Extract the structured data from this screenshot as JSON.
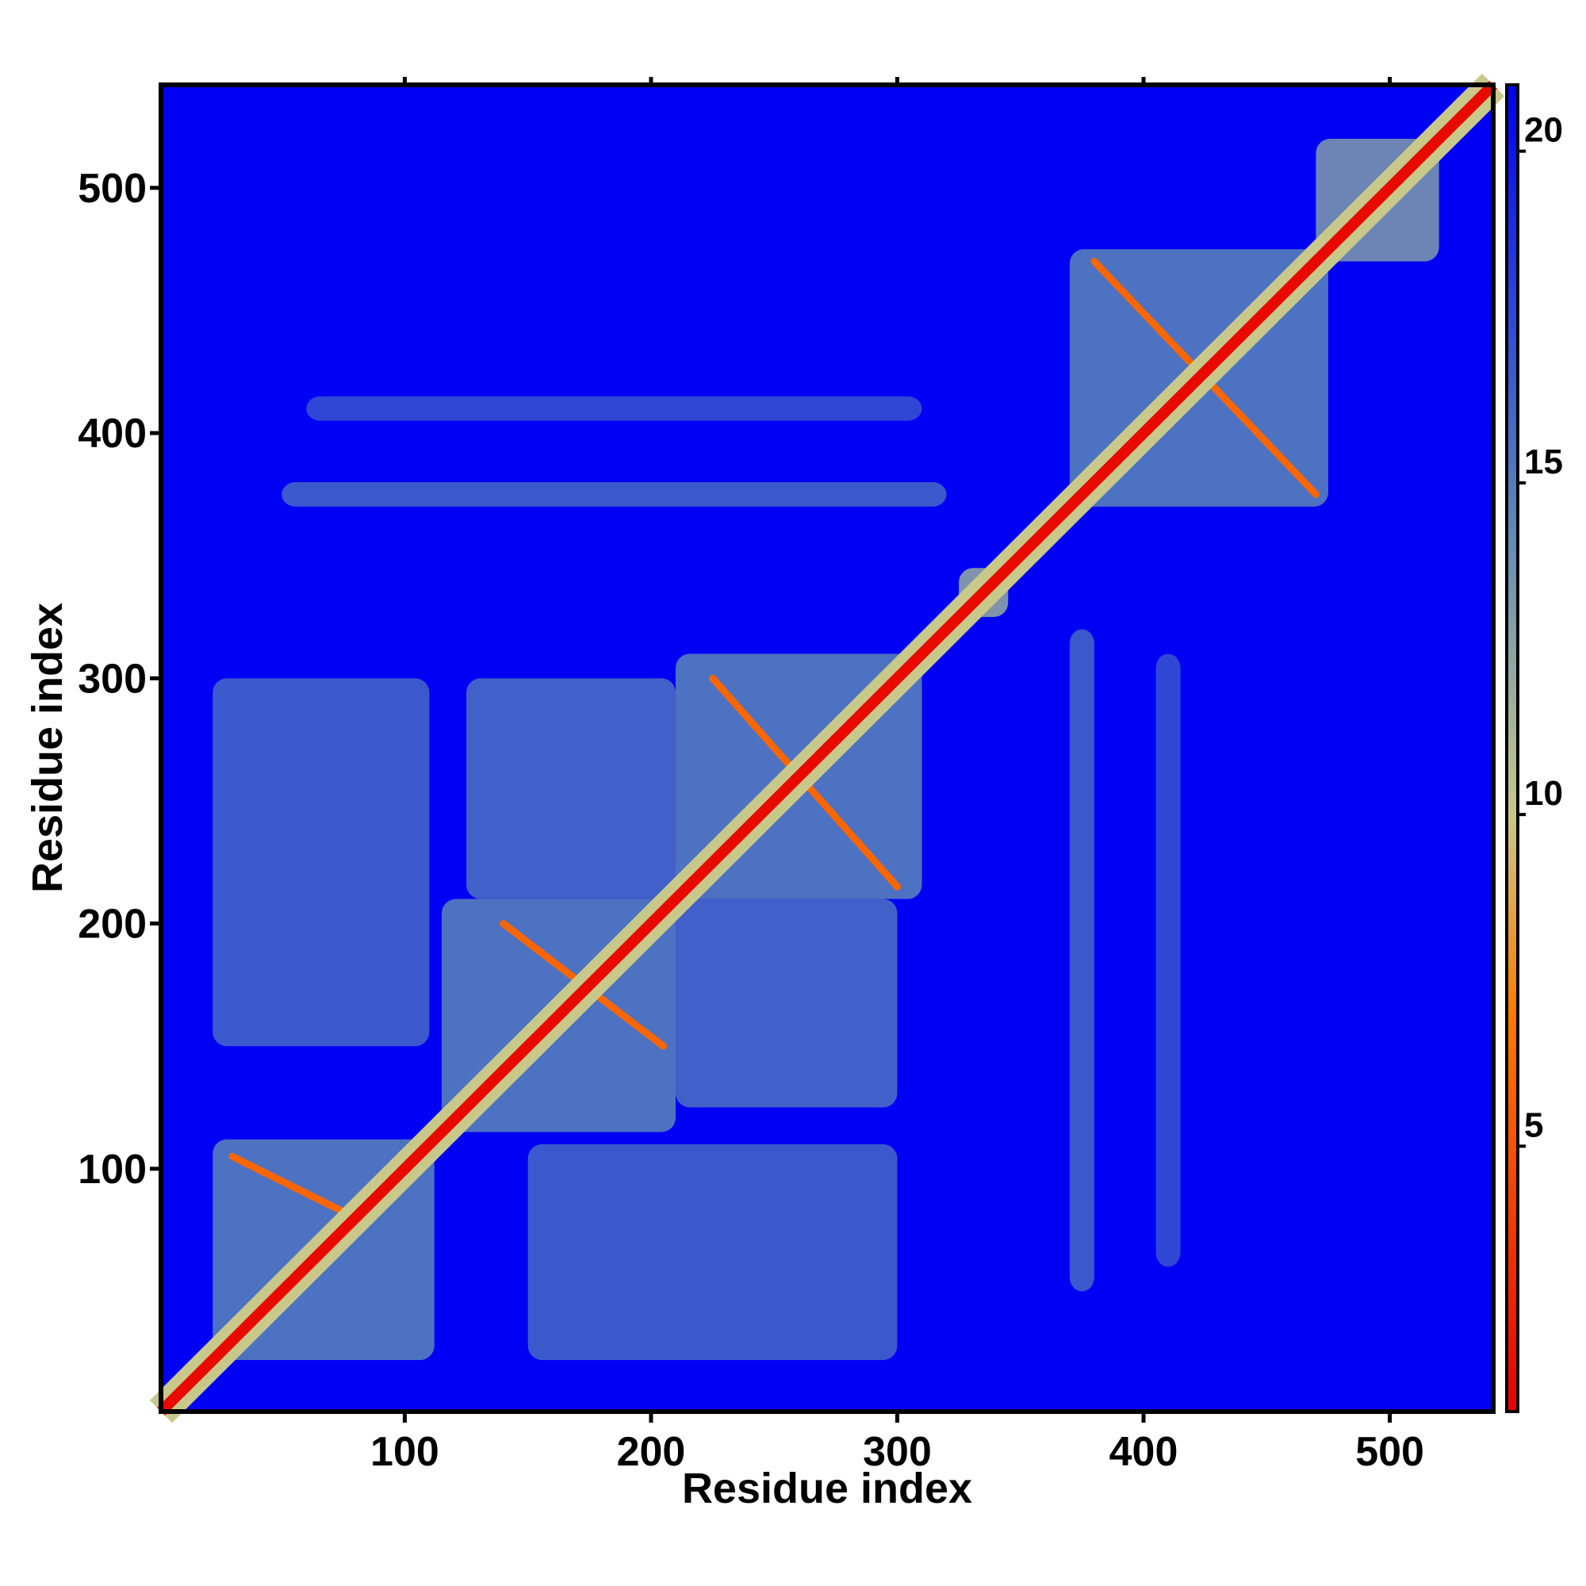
{
  "chart_data": {
    "type": "heatmap",
    "title": "",
    "xlabel": "Residue index",
    "ylabel": "Residue index",
    "xlim": [
      1,
      542
    ],
    "ylim": [
      1,
      542
    ],
    "x_ticks": [
      "100",
      "200",
      "300",
      "400",
      "500"
    ],
    "y_ticks": [
      "100",
      "200",
      "300",
      "400",
      "500"
    ],
    "colorbar": {
      "range": [
        1,
        21
      ],
      "ticks": [
        "5",
        "10",
        "15",
        "20"
      ],
      "colors": [
        "#e60000",
        "#ff7a00",
        "#c8c88a",
        "#5b86b8",
        "#0000f5"
      ],
      "stops": [
        1,
        7,
        10,
        14.5,
        21
      ]
    },
    "background_value": 21,
    "diagonal_value": 1.5,
    "regions": [
      {
        "type": "block",
        "x": [
          22,
          112
        ],
        "y": [
          22,
          112
        ],
        "value": 14.5
      },
      {
        "type": "block",
        "x": [
          115,
          210
        ],
        "y": [
          115,
          210
        ],
        "value": 14.5
      },
      {
        "type": "block",
        "x": [
          210,
          310
        ],
        "y": [
          210,
          310
        ],
        "value": 14.5
      },
      {
        "type": "block",
        "x": [
          325,
          345
        ],
        "y": [
          325,
          345
        ],
        "value": 12
      },
      {
        "type": "block",
        "x": [
          370,
          475
        ],
        "y": [
          370,
          475
        ],
        "value": 14.5
      },
      {
        "type": "block",
        "x": [
          470,
          520
        ],
        "y": [
          470,
          520
        ],
        "value": 13
      },
      {
        "type": "block",
        "x": [
          125,
          210
        ],
        "y": [
          210,
          300
        ],
        "value": 15.5
      },
      {
        "type": "block",
        "x": [
          210,
          300
        ],
        "y": [
          125,
          210
        ],
        "value": 15.5
      },
      {
        "type": "block",
        "x": [
          22,
          110
        ],
        "y": [
          150,
          300
        ],
        "value": 16
      },
      {
        "type": "block",
        "x": [
          150,
          300
        ],
        "y": [
          22,
          110
        ],
        "value": 16
      },
      {
        "type": "block",
        "x": [
          370,
          380
        ],
        "y": [
          50,
          320
        ],
        "value": 16
      },
      {
        "type": "block",
        "x": [
          50,
          320
        ],
        "y": [
          370,
          380
        ],
        "value": 16
      },
      {
        "type": "block",
        "x": [
          405,
          415
        ],
        "y": [
          60,
          310
        ],
        "value": 17
      },
      {
        "type": "block",
        "x": [
          60,
          310
        ],
        "y": [
          405,
          415
        ],
        "value": 17
      },
      {
        "type": "arc",
        "x": [
          30,
          80
        ],
        "y": [
          80,
          105
        ],
        "value": 6
      },
      {
        "type": "arc",
        "x": [
          140,
          205
        ],
        "y": [
          150,
          200
        ],
        "value": 6
      },
      {
        "type": "arc",
        "x": [
          225,
          300
        ],
        "y": [
          215,
          300
        ],
        "value": 6
      },
      {
        "type": "arc",
        "x": [
          380,
          470
        ],
        "y": [
          375,
          470
        ],
        "value": 6
      }
    ]
  }
}
